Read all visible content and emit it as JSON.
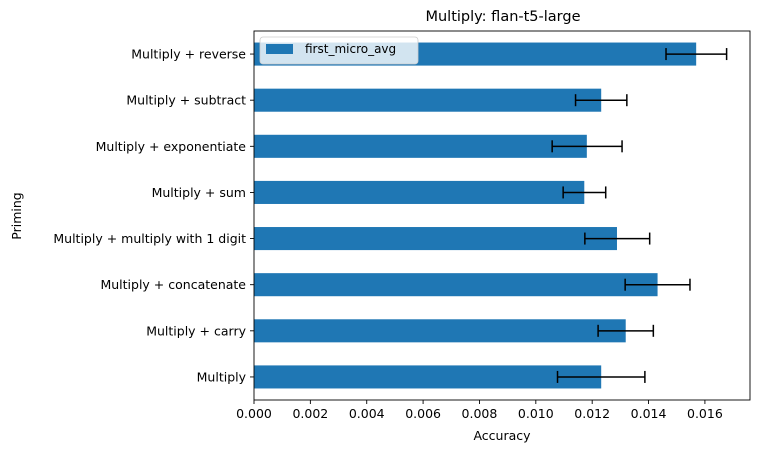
{
  "chart_data": {
    "type": "bar",
    "orientation": "horizontal",
    "title": "Multiply: flan-t5-large",
    "xlabel": "Accuracy",
    "ylabel": "Priming",
    "xlim": [
      0,
      0.0176
    ],
    "xticks": [
      "0.000",
      "0.002",
      "0.004",
      "0.006",
      "0.008",
      "0.010",
      "0.012",
      "0.014",
      "0.016"
    ],
    "xtick_values": [
      0,
      0.002,
      0.004,
      0.006,
      0.008,
      0.01,
      0.012,
      0.014,
      0.016
    ],
    "categories": [
      "Multiply",
      "Multiply + carry",
      "Multiply + concatenate",
      "Multiply + multiply with 1 digit",
      "Multiply + sum",
      "Multiply + exponentiate",
      "Multiply + subtract",
      "Multiply + reverse"
    ],
    "series": [
      {
        "name": "first_micro_avg",
        "color": "#1f77b4",
        "values": [
          0.01232,
          0.01319,
          0.01432,
          0.01288,
          0.01172,
          0.01181,
          0.01232,
          0.01569
        ],
        "error_low": [
          0.01077,
          0.01221,
          0.01317,
          0.01174,
          0.01097,
          0.01058,
          0.01141,
          0.01462
        ],
        "error_high": [
          0.01387,
          0.01417,
          0.01547,
          0.01404,
          0.01248,
          0.01306,
          0.01323,
          0.01677
        ]
      }
    ],
    "legend": {
      "position": "top-left"
    },
    "grid": false
  }
}
